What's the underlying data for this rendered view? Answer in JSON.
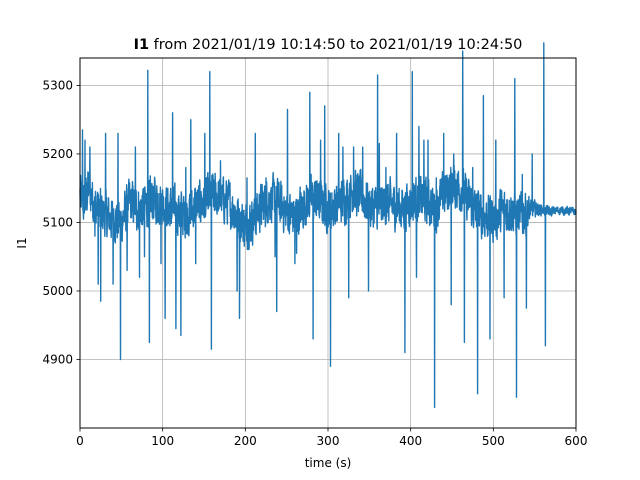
{
  "chart_data": {
    "type": "line",
    "title": {
      "variable": "I1",
      "rest": " from 2021/01/19 10:14:50 to 2021/01/19 10:24:50"
    },
    "xlabel": "time (s)",
    "ylabel": "I1",
    "xlim": [
      0,
      600
    ],
    "ylim": [
      4800,
      5340
    ],
    "xticks": [
      0,
      100,
      200,
      300,
      400,
      500,
      600
    ],
    "yticks": [
      4900,
      5000,
      5100,
      5200,
      5300
    ],
    "grid": true,
    "color": "#1f77b4",
    "baseline": [
      [
        0,
        5140
      ],
      [
        5,
        5125
      ],
      [
        10,
        5150
      ],
      [
        20,
        5120
      ],
      [
        30,
        5110
      ],
      [
        40,
        5105
      ],
      [
        50,
        5100
      ],
      [
        60,
        5130
      ],
      [
        70,
        5120
      ],
      [
        80,
        5125
      ],
      [
        90,
        5135
      ],
      [
        100,
        5128
      ],
      [
        110,
        5120
      ],
      [
        120,
        5115
      ],
      [
        130,
        5110
      ],
      [
        140,
        5125
      ],
      [
        150,
        5130
      ],
      [
        160,
        5140
      ],
      [
        170,
        5135
      ],
      [
        180,
        5130
      ],
      [
        190,
        5110
      ],
      [
        200,
        5095
      ],
      [
        210,
        5105
      ],
      [
        220,
        5125
      ],
      [
        230,
        5135
      ],
      [
        240,
        5130
      ],
      [
        250,
        5115
      ],
      [
        260,
        5110
      ],
      [
        270,
        5125
      ],
      [
        280,
        5135
      ],
      [
        290,
        5130
      ],
      [
        300,
        5120
      ],
      [
        310,
        5125
      ],
      [
        320,
        5135
      ],
      [
        330,
        5145
      ],
      [
        340,
        5140
      ],
      [
        350,
        5125
      ],
      [
        360,
        5120
      ],
      [
        370,
        5130
      ],
      [
        380,
        5125
      ],
      [
        390,
        5120
      ],
      [
        400,
        5130
      ],
      [
        410,
        5135
      ],
      [
        420,
        5130
      ],
      [
        430,
        5120
      ],
      [
        440,
        5140
      ],
      [
        450,
        5155
      ],
      [
        460,
        5150
      ],
      [
        470,
        5130
      ],
      [
        480,
        5115
      ],
      [
        490,
        5110
      ],
      [
        500,
        5105
      ],
      [
        510,
        5115
      ],
      [
        520,
        5120
      ],
      [
        530,
        5110
      ],
      [
        540,
        5115
      ],
      [
        550,
        5120
      ],
      [
        560,
        5118
      ],
      [
        570,
        5116
      ],
      [
        580,
        5118
      ],
      [
        590,
        5117
      ],
      [
        600,
        5116
      ]
    ],
    "noise_amplitude": [
      [
        0,
        45
      ],
      [
        540,
        45
      ],
      [
        545,
        20
      ],
      [
        555,
        12
      ],
      [
        560,
        10
      ],
      [
        600,
        8
      ]
    ],
    "spikes": [
      [
        3,
        5235
      ],
      [
        6,
        5220
      ],
      [
        12,
        5210
      ],
      [
        18,
        5080
      ],
      [
        22,
        5010
      ],
      [
        25,
        4985
      ],
      [
        31,
        5230
      ],
      [
        40,
        5010
      ],
      [
        46,
        5230
      ],
      [
        49,
        4900
      ],
      [
        57,
        5030
      ],
      [
        67,
        5210
      ],
      [
        72,
        5020
      ],
      [
        78,
        5050
      ],
      [
        82,
        5322
      ],
      [
        84,
        4925
      ],
      [
        98,
        5040
      ],
      [
        103,
        4960
      ],
      [
        112,
        5260
      ],
      [
        116,
        4945
      ],
      [
        122,
        4935
      ],
      [
        128,
        5180
      ],
      [
        134,
        5250
      ],
      [
        140,
        5040
      ],
      [
        151,
        5230
      ],
      [
        157,
        5320
      ],
      [
        159,
        4915
      ],
      [
        170,
        5190
      ],
      [
        182,
        5120
      ],
      [
        190,
        5000
      ],
      [
        193,
        4960
      ],
      [
        202,
        5165
      ],
      [
        212,
        5230
      ],
      [
        225,
        5165
      ],
      [
        236,
        5050
      ],
      [
        238,
        4970
      ],
      [
        251,
        5265
      ],
      [
        260,
        5040
      ],
      [
        262,
        5055
      ],
      [
        278,
        5290
      ],
      [
        282,
        4930
      ],
      [
        291,
        5220
      ],
      [
        296,
        5270
      ],
      [
        303,
        4890
      ],
      [
        313,
        5230
      ],
      [
        318,
        5210
      ],
      [
        325,
        4990
      ],
      [
        331,
        5210
      ],
      [
        342,
        5210
      ],
      [
        349,
        5000
      ],
      [
        360,
        5315
      ],
      [
        362,
        5215
      ],
      [
        370,
        5180
      ],
      [
        383,
        5230
      ],
      [
        393,
        4910
      ],
      [
        402,
        5320
      ],
      [
        407,
        5020
      ],
      [
        410,
        5240
      ],
      [
        416,
        5220
      ],
      [
        421,
        5220
      ],
      [
        429,
        4830
      ],
      [
        431,
        5165
      ],
      [
        440,
        5230
      ],
      [
        449,
        4980
      ],
      [
        452,
        5200
      ],
      [
        463,
        5350
      ],
      [
        465,
        4925
      ],
      [
        475,
        5180
      ],
      [
        481,
        4850
      ],
      [
        488,
        5285
      ],
      [
        496,
        4930
      ],
      [
        503,
        5220
      ],
      [
        513,
        4990
      ],
      [
        526,
        5310
      ],
      [
        528,
        4845
      ],
      [
        535,
        5170
      ],
      [
        540,
        4975
      ],
      [
        547,
        5200
      ],
      [
        561,
        5362
      ],
      [
        563,
        4920
      ]
    ]
  }
}
